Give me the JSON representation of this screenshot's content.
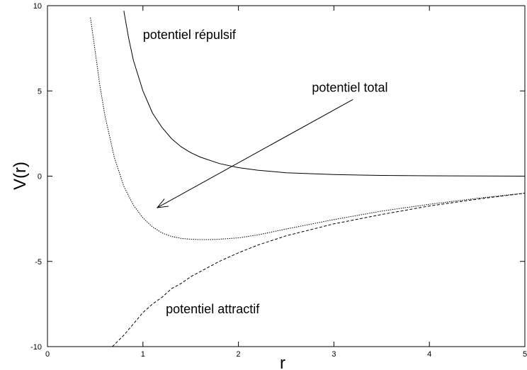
{
  "chart_data": {
    "type": "line",
    "title": "",
    "xlabel": "r",
    "ylabel": "V(r)",
    "xlim": [
      0,
      5
    ],
    "ylim": [
      -10,
      10
    ],
    "x_ticks": [
      0,
      1,
      2,
      3,
      4,
      5
    ],
    "y_ticks": [
      -10,
      -5,
      0,
      5,
      10
    ],
    "grid": false,
    "legend": "none",
    "series": [
      {
        "key": "repulsive",
        "style": "solid",
        "x": [
          0.8,
          0.85,
          0.9,
          1.0,
          1.1,
          1.2,
          1.3,
          1.4,
          1.5,
          1.6,
          1.8,
          2.0,
          2.2,
          2.5,
          3.0,
          3.5,
          4.0,
          4.5,
          5.0
        ],
        "values": [
          9.7,
          8.1,
          6.8,
          5.0,
          3.7,
          2.85,
          2.2,
          1.72,
          1.38,
          1.12,
          0.74,
          0.5,
          0.35,
          0.2,
          0.09,
          0.04,
          0.02,
          0.01,
          0.0
        ]
      },
      {
        "key": "total",
        "style": "dotted",
        "x": [
          0.45,
          0.5,
          0.55,
          0.6,
          0.7,
          0.8,
          0.9,
          1.0,
          1.1,
          1.2,
          1.3,
          1.4,
          1.5,
          1.6,
          1.7,
          1.8,
          2.0,
          2.2,
          2.5,
          3.0,
          3.5,
          4.0,
          4.5,
          5.0
        ],
        "values": [
          9.3,
          7.3,
          5.3,
          3.6,
          1.1,
          -0.6,
          -1.7,
          -2.45,
          -2.98,
          -3.33,
          -3.54,
          -3.65,
          -3.7,
          -3.72,
          -3.72,
          -3.7,
          -3.62,
          -3.45,
          -3.1,
          -2.55,
          -2.05,
          -1.65,
          -1.3,
          -1.0
        ]
      },
      {
        "key": "attractive",
        "style": "dashed",
        "x": [
          0.68,
          0.8,
          0.9,
          1.0,
          1.1,
          1.2,
          1.3,
          1.4,
          1.5,
          1.6,
          1.8,
          2.0,
          2.2,
          2.5,
          3.0,
          3.5,
          4.0,
          4.5,
          5.0
        ],
        "values": [
          -10.0,
          -9.33,
          -8.67,
          -8.0,
          -7.5,
          -7.1,
          -6.6,
          -6.3,
          -5.9,
          -5.6,
          -5.0,
          -4.5,
          -4.05,
          -3.5,
          -2.8,
          -2.25,
          -1.75,
          -1.35,
          -1.0
        ]
      }
    ],
    "annotations": [
      {
        "key": "repulsive-label",
        "text": "potentiel répulsif",
        "x": 1.0,
        "y": 8.05
      },
      {
        "key": "total-label",
        "text": "potentiel total",
        "x": 2.77,
        "y": 4.95
      },
      {
        "key": "attractive-label",
        "text": "potentiel attractif",
        "x": 1.24,
        "y": -8.05
      }
    ],
    "arrow": {
      "from": [
        3.2,
        4.5
      ],
      "to": [
        1.15,
        -1.85
      ]
    }
  }
}
